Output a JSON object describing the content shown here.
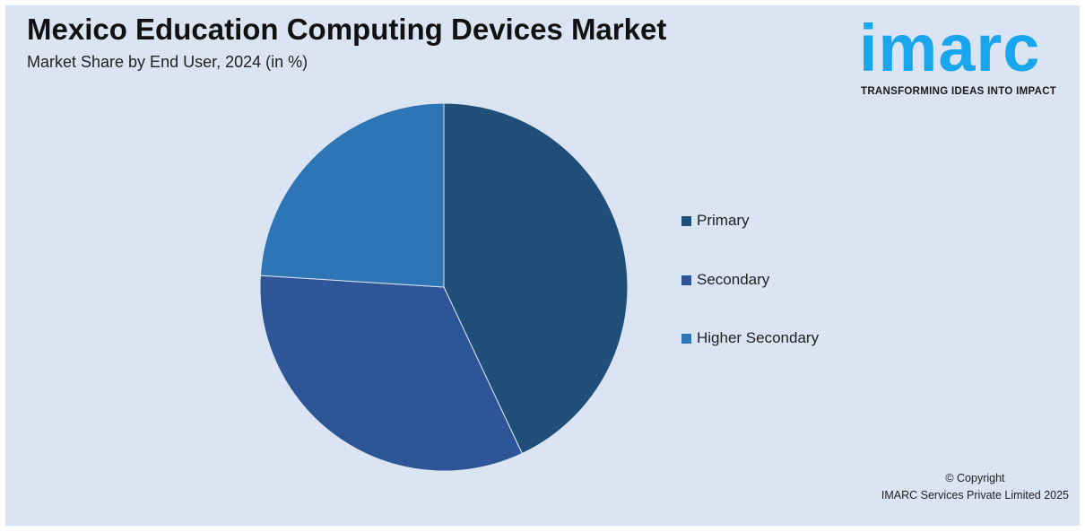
{
  "header": {
    "title": "Mexico Education Computing Devices Market",
    "subtitle": "Market Share by End User, 2024 (in %)"
  },
  "logo": {
    "word": "imarc",
    "tagline": "TRANSFORMING IDEAS INTO IMPACT",
    "color": "#1aa6ec"
  },
  "chart_data": {
    "type": "pie",
    "title": "Mexico Education Computing Devices Market",
    "subtitle": "Market Share by End User, 2024 (in %)",
    "legend_position": "right",
    "slices": [
      {
        "label": "Primary",
        "value": 43,
        "color": "#1f4e79"
      },
      {
        "label": "Secondary",
        "value": 33,
        "color": "#2e5597"
      },
      {
        "label": "Higher Secondary",
        "value": 24,
        "color": "#2e75b6"
      }
    ]
  },
  "footer": {
    "copyright_line1": "© Copyright",
    "copyright_line2": "IMARC Services Private Limited 2025"
  }
}
